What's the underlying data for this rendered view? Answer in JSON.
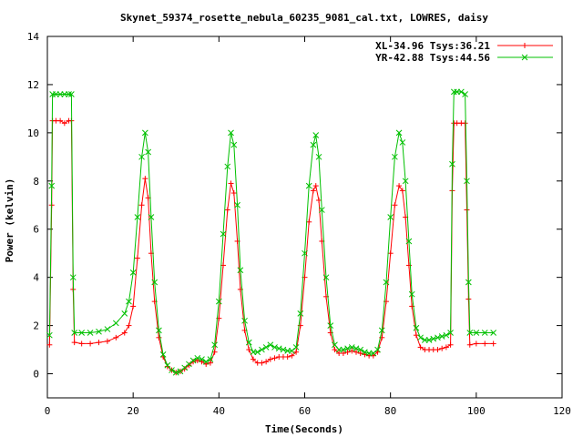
{
  "chart_data": {
    "type": "line",
    "title": "Skynet_59374_rosette_nebula_60235_9081_cal.txt, LOWRES, daisy",
    "xlabel": "Time(Seconds)",
    "ylabel": "Power (kelvin)",
    "xlim": [
      0,
      120
    ],
    "ylim": [
      -1,
      14
    ],
    "xticks": [
      "0",
      "20",
      "40",
      "60",
      "80",
      "100",
      "120"
    ],
    "yticks": [
      "0",
      "2",
      "4",
      "6",
      "8",
      "10",
      "12",
      "14"
    ],
    "grid": false,
    "legend_position": "top-right",
    "series": [
      {
        "name": "XL-34.96 Tsys:36.21",
        "color": "#ff0000",
        "marker": "plus",
        "points": [
          [
            0.5,
            1.2
          ],
          [
            1,
            7.0
          ],
          [
            1.2,
            10.5
          ],
          [
            2,
            10.5
          ],
          [
            3,
            10.5
          ],
          [
            4,
            10.4
          ],
          [
            5,
            10.5
          ],
          [
            5.6,
            10.5
          ],
          [
            6,
            3.5
          ],
          [
            6.3,
            1.3
          ],
          [
            8,
            1.25
          ],
          [
            10,
            1.25
          ],
          [
            12,
            1.3
          ],
          [
            14,
            1.35
          ],
          [
            16,
            1.5
          ],
          [
            18,
            1.7
          ],
          [
            19,
            2.0
          ],
          [
            20,
            2.8
          ],
          [
            21,
            4.8
          ],
          [
            22,
            7.0
          ],
          [
            22.8,
            8.1
          ],
          [
            23.5,
            7.3
          ],
          [
            24.2,
            5.0
          ],
          [
            25,
            3.0
          ],
          [
            26,
            1.5
          ],
          [
            27,
            0.7
          ],
          [
            28,
            0.3
          ],
          [
            29,
            0.15
          ],
          [
            30,
            0.05
          ],
          [
            31,
            0.1
          ],
          [
            32,
            0.2
          ],
          [
            33,
            0.35
          ],
          [
            34,
            0.5
          ],
          [
            35,
            0.55
          ],
          [
            36,
            0.5
          ],
          [
            37,
            0.4
          ],
          [
            38,
            0.45
          ],
          [
            39,
            0.9
          ],
          [
            40,
            2.3
          ],
          [
            41,
            4.5
          ],
          [
            42,
            6.8
          ],
          [
            42.8,
            7.9
          ],
          [
            43.5,
            7.5
          ],
          [
            44.3,
            5.5
          ],
          [
            45,
            3.5
          ],
          [
            46,
            1.8
          ],
          [
            47,
            1.0
          ],
          [
            48,
            0.6
          ],
          [
            49,
            0.45
          ],
          [
            50,
            0.45
          ],
          [
            51,
            0.5
          ],
          [
            52,
            0.6
          ],
          [
            53,
            0.65
          ],
          [
            54,
            0.7
          ],
          [
            55,
            0.7
          ],
          [
            56,
            0.7
          ],
          [
            57,
            0.75
          ],
          [
            58,
            0.9
          ],
          [
            59,
            2.0
          ],
          [
            60,
            4.0
          ],
          [
            61,
            6.3
          ],
          [
            62,
            7.6
          ],
          [
            62.6,
            7.8
          ],
          [
            63.3,
            7.2
          ],
          [
            64,
            5.5
          ],
          [
            65,
            3.2
          ],
          [
            66,
            1.7
          ],
          [
            67,
            1.0
          ],
          [
            68,
            0.85
          ],
          [
            69,
            0.85
          ],
          [
            70,
            0.9
          ],
          [
            71,
            0.95
          ],
          [
            72,
            0.9
          ],
          [
            73,
            0.85
          ],
          [
            74,
            0.8
          ],
          [
            75,
            0.75
          ],
          [
            76,
            0.75
          ],
          [
            77,
            0.9
          ],
          [
            78,
            1.5
          ],
          [
            79,
            3.0
          ],
          [
            80,
            5.0
          ],
          [
            81,
            7.0
          ],
          [
            82,
            7.8
          ],
          [
            82.8,
            7.6
          ],
          [
            83.5,
            6.5
          ],
          [
            84.3,
            4.5
          ],
          [
            85,
            2.8
          ],
          [
            86,
            1.6
          ],
          [
            87,
            1.1
          ],
          [
            88,
            1.0
          ],
          [
            89,
            1.0
          ],
          [
            90,
            1.0
          ],
          [
            91,
            1.0
          ],
          [
            92,
            1.05
          ],
          [
            93,
            1.1
          ],
          [
            94,
            1.2
          ],
          [
            94.4,
            7.6
          ],
          [
            94.8,
            10.4
          ],
          [
            95.5,
            10.4
          ],
          [
            96.5,
            10.4
          ],
          [
            97.4,
            10.4
          ],
          [
            97.8,
            6.8
          ],
          [
            98.2,
            3.1
          ],
          [
            98.5,
            1.2
          ],
          [
            100,
            1.25
          ],
          [
            102,
            1.25
          ],
          [
            104,
            1.25
          ]
        ]
      },
      {
        "name": "YR-42.88 Tsys:44.56",
        "color": "#00c000",
        "marker": "cross",
        "points": [
          [
            0.5,
            1.6
          ],
          [
            1,
            7.8
          ],
          [
            1.2,
            11.6
          ],
          [
            2,
            11.6
          ],
          [
            3,
            11.6
          ],
          [
            4,
            11.6
          ],
          [
            5,
            11.6
          ],
          [
            5.6,
            11.6
          ],
          [
            6,
            4.0
          ],
          [
            6.3,
            1.7
          ],
          [
            8,
            1.7
          ],
          [
            10,
            1.7
          ],
          [
            12,
            1.75
          ],
          [
            14,
            1.85
          ],
          [
            16,
            2.1
          ],
          [
            18,
            2.5
          ],
          [
            19,
            3.0
          ],
          [
            20,
            4.2
          ],
          [
            21,
            6.5
          ],
          [
            22,
            9.0
          ],
          [
            22.8,
            10.0
          ],
          [
            23.5,
            9.2
          ],
          [
            24.2,
            6.5
          ],
          [
            25,
            3.8
          ],
          [
            26,
            1.8
          ],
          [
            27,
            0.8
          ],
          [
            28,
            0.35
          ],
          [
            29,
            0.15
          ],
          [
            30,
            0.05
          ],
          [
            31,
            0.1
          ],
          [
            32,
            0.25
          ],
          [
            33,
            0.4
          ],
          [
            34,
            0.55
          ],
          [
            35,
            0.65
          ],
          [
            36,
            0.6
          ],
          [
            37,
            0.5
          ],
          [
            38,
            0.6
          ],
          [
            39,
            1.2
          ],
          [
            40,
            3.0
          ],
          [
            41,
            5.8
          ],
          [
            42,
            8.6
          ],
          [
            42.8,
            10.0
          ],
          [
            43.5,
            9.5
          ],
          [
            44.3,
            7.0
          ],
          [
            45,
            4.3
          ],
          [
            46,
            2.2
          ],
          [
            47,
            1.3
          ],
          [
            48,
            0.9
          ],
          [
            49,
            0.9
          ],
          [
            50,
            1.0
          ],
          [
            51,
            1.1
          ],
          [
            52,
            1.2
          ],
          [
            53,
            1.1
          ],
          [
            54,
            1.05
          ],
          [
            55,
            1.0
          ],
          [
            56,
            0.95
          ],
          [
            57,
            0.95
          ],
          [
            58,
            1.1
          ],
          [
            59,
            2.5
          ],
          [
            60,
            5.0
          ],
          [
            61,
            7.8
          ],
          [
            62,
            9.5
          ],
          [
            62.6,
            9.9
          ],
          [
            63.3,
            9.0
          ],
          [
            64,
            6.8
          ],
          [
            65,
            4.0
          ],
          [
            66,
            2.0
          ],
          [
            67,
            1.2
          ],
          [
            68,
            1.0
          ],
          [
            69,
            1.0
          ],
          [
            70,
            1.05
          ],
          [
            71,
            1.1
          ],
          [
            72,
            1.05
          ],
          [
            73,
            1.0
          ],
          [
            74,
            0.9
          ],
          [
            75,
            0.85
          ],
          [
            76,
            0.85
          ],
          [
            77,
            1.0
          ],
          [
            78,
            1.8
          ],
          [
            79,
            3.8
          ],
          [
            80,
            6.5
          ],
          [
            81,
            9.0
          ],
          [
            82,
            10.0
          ],
          [
            82.8,
            9.6
          ],
          [
            83.5,
            8.0
          ],
          [
            84.3,
            5.5
          ],
          [
            85,
            3.3
          ],
          [
            86,
            1.9
          ],
          [
            87,
            1.5
          ],
          [
            88,
            1.4
          ],
          [
            89,
            1.4
          ],
          [
            90,
            1.45
          ],
          [
            91,
            1.5
          ],
          [
            92,
            1.55
          ],
          [
            93,
            1.6
          ],
          [
            94,
            1.7
          ],
          [
            94.4,
            8.7
          ],
          [
            94.8,
            11.7
          ],
          [
            95.5,
            11.7
          ],
          [
            96.5,
            11.7
          ],
          [
            97.4,
            11.6
          ],
          [
            97.8,
            8.0
          ],
          [
            98.2,
            3.8
          ],
          [
            98.5,
            1.7
          ],
          [
            100,
            1.7
          ],
          [
            102,
            1.7
          ],
          [
            104,
            1.7
          ]
        ]
      }
    ]
  }
}
